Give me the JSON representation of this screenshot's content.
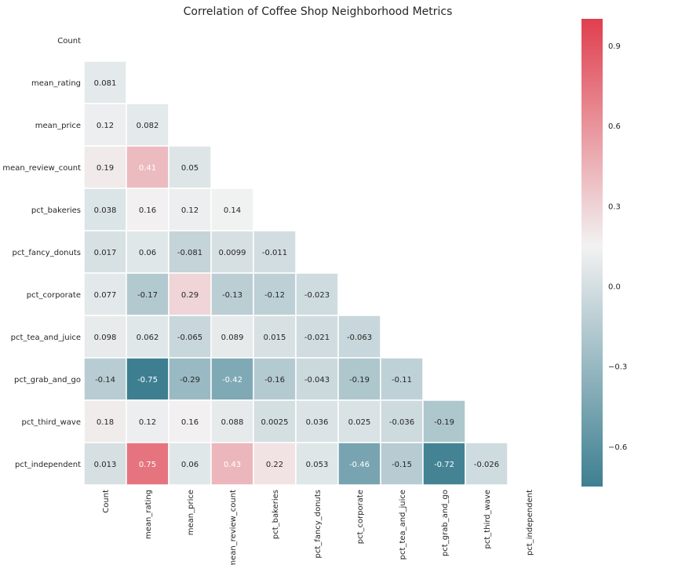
{
  "chart_data": {
    "type": "heatmap",
    "title": "Correlation of Coffee Shop Neighborhood Metrics",
    "row_labels": [
      "Count",
      "mean_rating",
      "mean_price",
      "mean_review_count",
      "pct_bakeries",
      "pct_fancy_donuts",
      "pct_corporate",
      "pct_tea_and_juice",
      "pct_grab_and_go",
      "pct_third_wave",
      "pct_independent"
    ],
    "col_labels": [
      "Count",
      "mean_rating",
      "mean_price",
      "mean_review_count",
      "pct_bakeries",
      "pct_fancy_donuts",
      "pct_corporate",
      "pct_tea_and_juice",
      "pct_grab_and_go",
      "pct_third_wave",
      "pct_independent"
    ],
    "mask": "upper-triangle-including-diagonal",
    "cells": [
      {
        "row": 1,
        "col": 0,
        "value": 0.081,
        "label": "0.081"
      },
      {
        "row": 2,
        "col": 0,
        "value": 0.12,
        "label": "0.12"
      },
      {
        "row": 2,
        "col": 1,
        "value": 0.082,
        "label": "0.082"
      },
      {
        "row": 3,
        "col": 0,
        "value": 0.19,
        "label": "0.19"
      },
      {
        "row": 3,
        "col": 1,
        "value": 0.41,
        "label": "0.41"
      },
      {
        "row": 3,
        "col": 2,
        "value": 0.05,
        "label": "0.05"
      },
      {
        "row": 4,
        "col": 0,
        "value": 0.038,
        "label": "0.038"
      },
      {
        "row": 4,
        "col": 1,
        "value": 0.16,
        "label": "0.16"
      },
      {
        "row": 4,
        "col": 2,
        "value": 0.12,
        "label": "0.12"
      },
      {
        "row": 4,
        "col": 3,
        "value": 0.14,
        "label": "0.14"
      },
      {
        "row": 5,
        "col": 0,
        "value": 0.017,
        "label": "0.017"
      },
      {
        "row": 5,
        "col": 1,
        "value": 0.06,
        "label": "0.06"
      },
      {
        "row": 5,
        "col": 2,
        "value": -0.081,
        "label": "-0.081"
      },
      {
        "row": 5,
        "col": 3,
        "value": 0.0099,
        "label": "0.0099"
      },
      {
        "row": 5,
        "col": 4,
        "value": -0.011,
        "label": "-0.011"
      },
      {
        "row": 6,
        "col": 0,
        "value": 0.077,
        "label": "0.077"
      },
      {
        "row": 6,
        "col": 1,
        "value": -0.17,
        "label": "-0.17"
      },
      {
        "row": 6,
        "col": 2,
        "value": 0.29,
        "label": "0.29"
      },
      {
        "row": 6,
        "col": 3,
        "value": -0.13,
        "label": "-0.13"
      },
      {
        "row": 6,
        "col": 4,
        "value": -0.12,
        "label": "-0.12"
      },
      {
        "row": 6,
        "col": 5,
        "value": -0.023,
        "label": "-0.023"
      },
      {
        "row": 7,
        "col": 0,
        "value": 0.098,
        "label": "0.098"
      },
      {
        "row": 7,
        "col": 1,
        "value": 0.062,
        "label": "0.062"
      },
      {
        "row": 7,
        "col": 2,
        "value": -0.065,
        "label": "-0.065"
      },
      {
        "row": 7,
        "col": 3,
        "value": 0.089,
        "label": "0.089"
      },
      {
        "row": 7,
        "col": 4,
        "value": 0.015,
        "label": "0.015"
      },
      {
        "row": 7,
        "col": 5,
        "value": -0.021,
        "label": "-0.021"
      },
      {
        "row": 7,
        "col": 6,
        "value": -0.063,
        "label": "-0.063"
      },
      {
        "row": 8,
        "col": 0,
        "value": -0.14,
        "label": "-0.14"
      },
      {
        "row": 8,
        "col": 1,
        "value": -0.75,
        "label": "-0.75"
      },
      {
        "row": 8,
        "col": 2,
        "value": -0.29,
        "label": "-0.29"
      },
      {
        "row": 8,
        "col": 3,
        "value": -0.42,
        "label": "-0.42"
      },
      {
        "row": 8,
        "col": 4,
        "value": -0.16,
        "label": "-0.16"
      },
      {
        "row": 8,
        "col": 5,
        "value": -0.043,
        "label": "-0.043"
      },
      {
        "row": 8,
        "col": 6,
        "value": -0.19,
        "label": "-0.19"
      },
      {
        "row": 8,
        "col": 7,
        "value": -0.11,
        "label": "-0.11"
      },
      {
        "row": 9,
        "col": 0,
        "value": 0.18,
        "label": "0.18"
      },
      {
        "row": 9,
        "col": 1,
        "value": 0.12,
        "label": "0.12"
      },
      {
        "row": 9,
        "col": 2,
        "value": 0.16,
        "label": "0.16"
      },
      {
        "row": 9,
        "col": 3,
        "value": 0.088,
        "label": "0.088"
      },
      {
        "row": 9,
        "col": 4,
        "value": 0.0025,
        "label": "0.0025"
      },
      {
        "row": 9,
        "col": 5,
        "value": 0.036,
        "label": "0.036"
      },
      {
        "row": 9,
        "col": 6,
        "value": 0.025,
        "label": "0.025"
      },
      {
        "row": 9,
        "col": 7,
        "value": -0.036,
        "label": "-0.036"
      },
      {
        "row": 9,
        "col": 8,
        "value": -0.19,
        "label": "-0.19"
      },
      {
        "row": 10,
        "col": 0,
        "value": 0.013,
        "label": "0.013"
      },
      {
        "row": 10,
        "col": 1,
        "value": 0.75,
        "label": "0.75"
      },
      {
        "row": 10,
        "col": 2,
        "value": 0.06,
        "label": "0.06"
      },
      {
        "row": 10,
        "col": 3,
        "value": 0.43,
        "label": "0.43"
      },
      {
        "row": 10,
        "col": 4,
        "value": 0.22,
        "label": "0.22"
      },
      {
        "row": 10,
        "col": 5,
        "value": 0.053,
        "label": "0.053"
      },
      {
        "row": 10,
        "col": 6,
        "value": -0.46,
        "label": "-0.46"
      },
      {
        "row": 10,
        "col": 7,
        "value": -0.15,
        "label": "-0.15"
      },
      {
        "row": 10,
        "col": 8,
        "value": -0.72,
        "label": "-0.72"
      },
      {
        "row": 10,
        "col": 9,
        "value": -0.026,
        "label": "-0.026"
      }
    ],
    "colorbar": {
      "min": -0.75,
      "max": 1.0,
      "center": 0.15,
      "ticks": [
        -0.6,
        -0.3,
        0.0,
        0.3,
        0.6,
        0.9
      ],
      "tick_labels": [
        "−0.6",
        "−0.3",
        "0.0",
        "0.3",
        "0.6",
        "0.9"
      ]
    },
    "colors": {
      "negative_end": "#3d7f91",
      "center": "#f2f2f2",
      "positive_end": "#e03f4e",
      "cell_border": "#ffffff",
      "dark_text": "#262626",
      "light_text": "#ffffff"
    },
    "grid": false
  }
}
